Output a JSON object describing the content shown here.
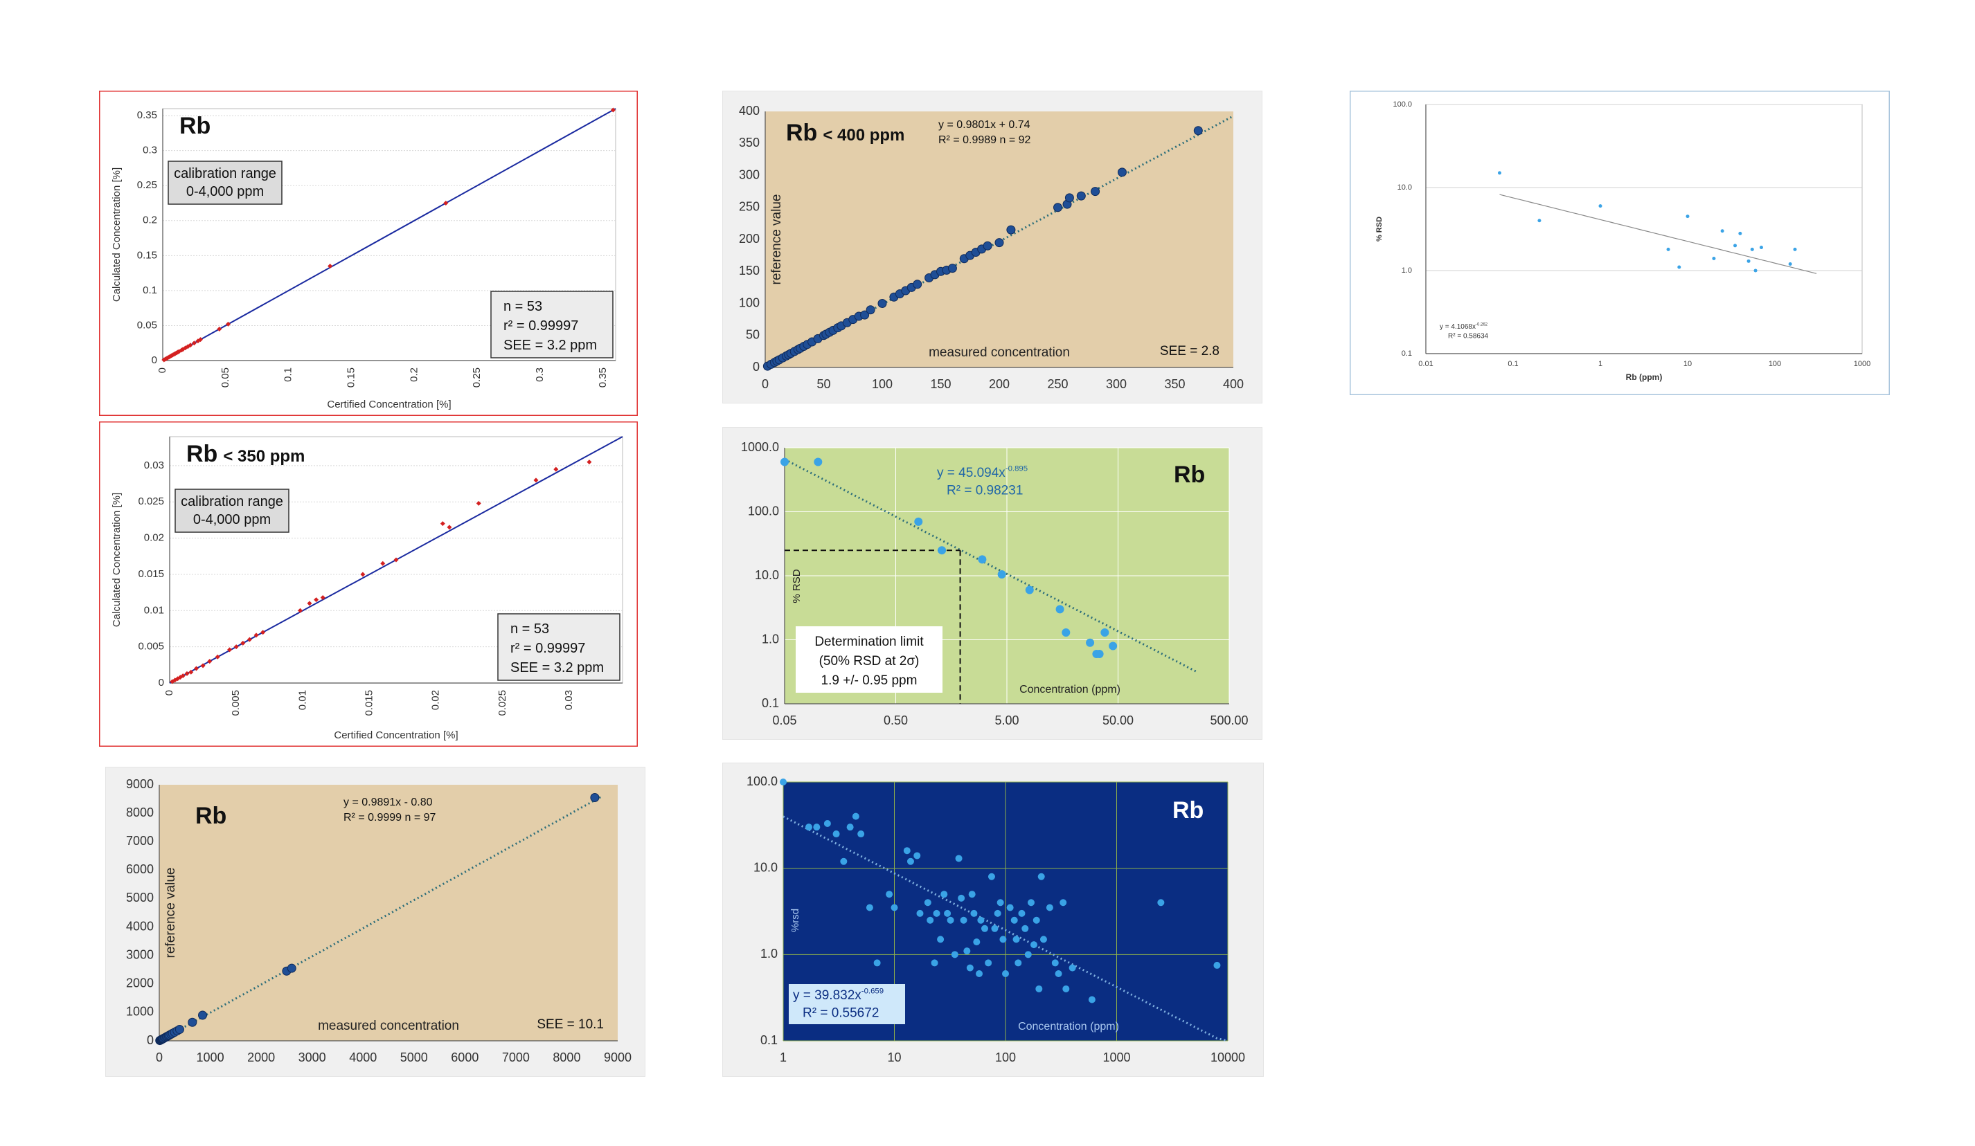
{
  "colors": {
    "red_frame": "#e03030",
    "tan_bg": "#e3ceaa",
    "green_bg": "#c8dc96",
    "navy_bg": "#0a2d82",
    "red_point": "#d42020",
    "dark_blue_point": "#1f4e96",
    "light_blue_point": "#3aa3e6",
    "fit_line_blue": "#1a2aa0",
    "dotted_fit": "#2d6e7a"
  },
  "chart_data": [
    {
      "id": "c1",
      "type": "scatter",
      "style": "red",
      "title": "Rb",
      "box_label": [
        "calibration range",
        "0-4,000 ppm"
      ],
      "stats": [
        "n = 53",
        "r² = 0.99997",
        "SEE = 3.2 ppm"
      ],
      "xlabel": "Certified Concentration [%]",
      "ylabel": "Calculated Concentration [%]",
      "xlim": [
        0,
        0.36
      ],
      "ylim": [
        0,
        0.36
      ],
      "x_ticks": [
        "0",
        "0.05",
        "0.1",
        "0.15",
        "0.2",
        "0.25",
        "0.3",
        "0.35"
      ],
      "x_tick_values": [
        0,
        0.05,
        0.1,
        0.15,
        0.2,
        0.25,
        0.3,
        0.35
      ],
      "y_ticks": [
        "0",
        "0.05",
        "0.1",
        "0.15",
        "0.2",
        "0.25",
        "0.3",
        "0.35"
      ],
      "y_tick_values": [
        0,
        0.05,
        0.1,
        0.15,
        0.2,
        0.25,
        0.3,
        0.35
      ],
      "fit": [
        [
          0,
          0
        ],
        [
          0.36,
          0.36
        ]
      ],
      "points": [
        [
          0.001,
          0.001
        ],
        [
          0.002,
          0.002
        ],
        [
          0.003,
          0.003
        ],
        [
          0.004,
          0.004
        ],
        [
          0.005,
          0.005
        ],
        [
          0.006,
          0.006
        ],
        [
          0.007,
          0.007
        ],
        [
          0.008,
          0.008
        ],
        [
          0.009,
          0.009
        ],
        [
          0.01,
          0.01
        ],
        [
          0.011,
          0.011
        ],
        [
          0.012,
          0.012
        ],
        [
          0.013,
          0.013
        ],
        [
          0.015,
          0.015
        ],
        [
          0.016,
          0.016
        ],
        [
          0.018,
          0.018
        ],
        [
          0.02,
          0.02
        ],
        [
          0.022,
          0.022
        ],
        [
          0.025,
          0.025
        ],
        [
          0.028,
          0.028
        ],
        [
          0.03,
          0.03
        ],
        [
          0.045,
          0.045
        ],
        [
          0.052,
          0.052
        ],
        [
          0.133,
          0.135
        ],
        [
          0.225,
          0.225
        ],
        [
          0.358,
          0.358
        ]
      ]
    },
    {
      "id": "c2",
      "type": "scatter",
      "style": "red",
      "title": "Rb",
      "title_suffix": "< 350 ppm",
      "box_label": [
        "calibration range",
        "0-4,000 ppm"
      ],
      "stats": [
        "n = 53",
        "r² = 0.99997",
        "SEE = 3.2 ppm"
      ],
      "xlabel": "Certified Concentration [%]",
      "ylabel": "Calculated Concentration [%]",
      "xlim": [
        0,
        0.034
      ],
      "ylim": [
        0,
        0.034
      ],
      "x_ticks": [
        "0",
        "0.005",
        "0.01",
        "0.015",
        "0.02",
        "0.025",
        "0.03"
      ],
      "x_tick_values": [
        0,
        0.005,
        0.01,
        0.015,
        0.02,
        0.025,
        0.03
      ],
      "y_ticks": [
        "0",
        "0.005",
        "0.01",
        "0.015",
        "0.02",
        "0.025",
        "0.03"
      ],
      "y_tick_values": [
        0,
        0.005,
        0.01,
        0.015,
        0.02,
        0.025,
        0.03
      ],
      "fit": [
        [
          0,
          0
        ],
        [
          0.034,
          0.034
        ]
      ],
      "points": [
        [
          0.0002,
          0.0002
        ],
        [
          0.0004,
          0.0004
        ],
        [
          0.0006,
          0.0006
        ],
        [
          0.0008,
          0.0008
        ],
        [
          0.001,
          0.001
        ],
        [
          0.0013,
          0.0013
        ],
        [
          0.0016,
          0.0015
        ],
        [
          0.002,
          0.002
        ],
        [
          0.0025,
          0.0024
        ],
        [
          0.003,
          0.003
        ],
        [
          0.0036,
          0.0036
        ],
        [
          0.0045,
          0.0046
        ],
        [
          0.005,
          0.005
        ],
        [
          0.0055,
          0.0055
        ],
        [
          0.006,
          0.006
        ],
        [
          0.0065,
          0.0066
        ],
        [
          0.007,
          0.007
        ],
        [
          0.0098,
          0.01
        ],
        [
          0.0105,
          0.011
        ],
        [
          0.011,
          0.0115
        ],
        [
          0.0115,
          0.0118
        ],
        [
          0.0145,
          0.015
        ],
        [
          0.016,
          0.0165
        ],
        [
          0.017,
          0.017
        ],
        [
          0.0205,
          0.022
        ],
        [
          0.021,
          0.0215
        ],
        [
          0.0232,
          0.0248
        ],
        [
          0.0275,
          0.028
        ],
        [
          0.029,
          0.0295
        ],
        [
          0.0315,
          0.0305
        ]
      ]
    },
    {
      "id": "c3",
      "type": "scatter",
      "style": "tan",
      "title": "Rb",
      "equation": [
        "y = 0.9891x - 0.80",
        "R² = 0.9999   n = 97"
      ],
      "see": "SEE = 10.1",
      "xlabel": "measured concentration",
      "ylabel": "reference value",
      "xlim": [
        0,
        9000
      ],
      "ylim": [
        0,
        9000
      ],
      "x_ticks": [
        "0",
        "1000",
        "2000",
        "3000",
        "4000",
        "5000",
        "6000",
        "7000",
        "8000",
        "9000"
      ],
      "x_tick_values": [
        0,
        1000,
        2000,
        3000,
        4000,
        5000,
        6000,
        7000,
        8000,
        9000
      ],
      "y_ticks": [
        "0",
        "1000",
        "2000",
        "3000",
        "4000",
        "5000",
        "6000",
        "7000",
        "8000",
        "9000"
      ],
      "y_tick_values": [
        0,
        1000,
        2000,
        3000,
        4000,
        5000,
        6000,
        7000,
        8000,
        9000
      ],
      "fit": [
        [
          0,
          -0.8
        ],
        [
          8700,
          8604
        ]
      ],
      "points": [
        [
          10,
          10
        ],
        [
          20,
          20
        ],
        [
          30,
          30
        ],
        [
          40,
          40
        ],
        [
          50,
          50
        ],
        [
          60,
          60
        ],
        [
          70,
          70
        ],
        [
          80,
          80
        ],
        [
          100,
          100
        ],
        [
          120,
          120
        ],
        [
          140,
          140
        ],
        [
          160,
          160
        ],
        [
          180,
          180
        ],
        [
          200,
          200
        ],
        [
          230,
          230
        ],
        [
          260,
          260
        ],
        [
          300,
          300
        ],
        [
          350,
          350
        ],
        [
          400,
          400
        ],
        [
          650,
          650
        ],
        [
          850,
          900
        ],
        [
          2500,
          2450
        ],
        [
          2600,
          2550
        ],
        [
          8550,
          8550
        ]
      ]
    },
    {
      "id": "c4",
      "type": "scatter",
      "style": "tan",
      "title": "Rb",
      "title_suffix": "< 400 ppm",
      "equation": [
        "y = 0.9801x + 0.74",
        "R² = 0.9989   n = 92"
      ],
      "see": "SEE = 2.8",
      "xlabel": "measured concentration",
      "ylabel": "reference value",
      "xlim": [
        0,
        400
      ],
      "ylim": [
        0,
        400
      ],
      "x_ticks": [
        "0",
        "50",
        "100",
        "150",
        "200",
        "250",
        "300",
        "350",
        "400"
      ],
      "x_tick_values": [
        0,
        50,
        100,
        150,
        200,
        250,
        300,
        350,
        400
      ],
      "y_ticks": [
        "0",
        "50",
        "100",
        "150",
        "200",
        "250",
        "300",
        "350",
        "400"
      ],
      "y_tick_values": [
        0,
        50,
        100,
        150,
        200,
        250,
        300,
        350,
        400
      ],
      "fit": [
        [
          0,
          0.74
        ],
        [
          400,
          392.8
        ]
      ],
      "points": [
        [
          2,
          2
        ],
        [
          5,
          5
        ],
        [
          8,
          8
        ],
        [
          10,
          10
        ],
        [
          12,
          12
        ],
        [
          15,
          15
        ],
        [
          18,
          18
        ],
        [
          20,
          20
        ],
        [
          22,
          22
        ],
        [
          25,
          25
        ],
        [
          28,
          28
        ],
        [
          30,
          30
        ],
        [
          33,
          33
        ],
        [
          36,
          36
        ],
        [
          40,
          40
        ],
        [
          45,
          45
        ],
        [
          50,
          50
        ],
        [
          52,
          52
        ],
        [
          55,
          55
        ],
        [
          58,
          58
        ],
        [
          62,
          62
        ],
        [
          65,
          65
        ],
        [
          70,
          70
        ],
        [
          75,
          75
        ],
        [
          80,
          80
        ],
        [
          85,
          82
        ],
        [
          90,
          90
        ],
        [
          100,
          100
        ],
        [
          110,
          110
        ],
        [
          115,
          115
        ],
        [
          120,
          120
        ],
        [
          125,
          125
        ],
        [
          130,
          130
        ],
        [
          140,
          140
        ],
        [
          145,
          145
        ],
        [
          150,
          150
        ],
        [
          155,
          152
        ],
        [
          160,
          155
        ],
        [
          170,
          170
        ],
        [
          175,
          175
        ],
        [
          180,
          180
        ],
        [
          185,
          185
        ],
        [
          190,
          190
        ],
        [
          200,
          195
        ],
        [
          210,
          215
        ],
        [
          250,
          250
        ],
        [
          258,
          255
        ],
        [
          260,
          265
        ],
        [
          270,
          268
        ],
        [
          282,
          275
        ],
        [
          305,
          305
        ],
        [
          370,
          370
        ]
      ]
    },
    {
      "id": "c5",
      "type": "scatter",
      "style": "green",
      "log": true,
      "title": "Rb",
      "equation": [
        "y = 45.094x",
        "-0.895",
        "R² = 0.98231"
      ],
      "box_label": [
        "Determination limit",
        "(50% RSD at 2σ)",
        "1.9 +/- 0.95 ppm"
      ],
      "xlabel": "Concentration (ppm)",
      "ylabel": "% RSD",
      "xlim": [
        0.05,
        500
      ],
      "ylim": [
        0.1,
        1000
      ],
      "x_ticks": [
        "0.05",
        "0.50",
        "5.00",
        "50.00",
        "500.00"
      ],
      "x_tick_values": [
        0.05,
        0.5,
        5,
        50,
        500
      ],
      "y_ticks": [
        "0.1",
        "1.0",
        "10.0",
        "100.0",
        "1000.0"
      ],
      "y_tick_values": [
        0.1,
        1,
        10,
        100,
        1000
      ],
      "fit_power": [
        45.094,
        -0.895
      ],
      "fit_range": [
        0.05,
        250
      ],
      "guide": [
        1.9,
        25
      ],
      "points": [
        [
          0.05,
          600
        ],
        [
          0.1,
          600
        ],
        [
          0.8,
          70
        ],
        [
          1.3,
          25
        ],
        [
          3,
          18
        ],
        [
          4.5,
          10.5
        ],
        [
          8,
          6
        ],
        [
          15,
          3
        ],
        [
          17,
          1.3
        ],
        [
          28,
          0.9
        ],
        [
          32,
          0.6
        ],
        [
          34,
          0.6
        ],
        [
          38,
          1.3
        ],
        [
          45,
          0.8
        ]
      ]
    },
    {
      "id": "c6",
      "type": "scatter",
      "style": "navy",
      "log": true,
      "title": "Rb",
      "equation": [
        "y = 39.832x",
        "-0.659",
        "R² = 0.55672"
      ],
      "xlabel": "Concentration (ppm)",
      "ylabel": "%rsd",
      "xlim": [
        1,
        10000
      ],
      "ylim": [
        0.1,
        100
      ],
      "x_ticks": [
        "1",
        "10",
        "100",
        "1000",
        "10000"
      ],
      "x_tick_values": [
        1,
        10,
        100,
        1000,
        10000
      ],
      "y_ticks": [
        "0.1",
        "1.0",
        "10.0",
        "100.0"
      ],
      "y_tick_values": [
        0.1,
        1,
        10,
        100
      ],
      "fit_power": [
        39.832,
        -0.659
      ],
      "fit_range": [
        1,
        10000
      ],
      "points": [
        [
          1,
          100
        ],
        [
          1.7,
          30
        ],
        [
          2,
          30
        ],
        [
          2.5,
          33
        ],
        [
          3,
          25
        ],
        [
          3.5,
          12
        ],
        [
          4,
          30
        ],
        [
          4.5,
          40
        ],
        [
          5,
          25
        ],
        [
          6,
          3.5
        ],
        [
          7,
          0.8
        ],
        [
          9,
          5
        ],
        [
          10,
          3.5
        ],
        [
          13,
          16
        ],
        [
          14,
          12
        ],
        [
          16,
          14
        ],
        [
          17,
          3
        ],
        [
          20,
          4
        ],
        [
          21,
          2.5
        ],
        [
          23,
          0.8
        ],
        [
          24,
          3
        ],
        [
          26,
          1.5
        ],
        [
          28,
          5
        ],
        [
          30,
          3
        ],
        [
          32,
          2.5
        ],
        [
          35,
          1
        ],
        [
          38,
          13
        ],
        [
          40,
          4.5
        ],
        [
          42,
          2.5
        ],
        [
          45,
          1.1
        ],
        [
          48,
          0.7
        ],
        [
          50,
          5
        ],
        [
          52,
          3
        ],
        [
          55,
          1.4
        ],
        [
          58,
          0.6
        ],
        [
          60,
          2.5
        ],
        [
          65,
          2
        ],
        [
          70,
          0.8
        ],
        [
          75,
          8
        ],
        [
          80,
          2
        ],
        [
          85,
          3
        ],
        [
          90,
          4
        ],
        [
          95,
          1.5
        ],
        [
          100,
          0.6
        ],
        [
          110,
          3.5
        ],
        [
          120,
          2.5
        ],
        [
          125,
          1.5
        ],
        [
          130,
          0.8
        ],
        [
          140,
          3
        ],
        [
          150,
          2
        ],
        [
          160,
          1
        ],
        [
          170,
          4
        ],
        [
          180,
          1.3
        ],
        [
          190,
          2.5
        ],
        [
          200,
          0.4
        ],
        [
          210,
          8
        ],
        [
          220,
          1.5
        ],
        [
          250,
          3.5
        ],
        [
          280,
          0.8
        ],
        [
          300,
          0.6
        ],
        [
          330,
          4
        ],
        [
          350,
          0.4
        ],
        [
          400,
          0.7
        ],
        [
          600,
          0.3
        ],
        [
          2500,
          4
        ],
        [
          8000,
          0.75
        ]
      ]
    },
    {
      "id": "c7",
      "type": "scatter",
      "style": "plain",
      "log": true,
      "equation": [
        "y = 4.1068x",
        "-0.262",
        "R² = 0.58634"
      ],
      "xlabel": "Rb (ppm)",
      "ylabel": "% RSD",
      "xlim": [
        0.01,
        1000
      ],
      "ylim": [
        0.1,
        100
      ],
      "x_ticks": [
        "0.01",
        "0.1",
        "1",
        "10",
        "100",
        "1000"
      ],
      "x_tick_values": [
        0.01,
        0.1,
        1,
        10,
        100,
        1000
      ],
      "y_ticks": [
        "0.1",
        "1.0",
        "10.0",
        "100.0"
      ],
      "y_tick_values": [
        0.1,
        1,
        10,
        100
      ],
      "fit_power": [
        4.1068,
        -0.262
      ],
      "fit_range": [
        0.07,
        300
      ],
      "points": [
        [
          0.07,
          15
        ],
        [
          0.2,
          4
        ],
        [
          1,
          6
        ],
        [
          6,
          1.8
        ],
        [
          8,
          1.1
        ],
        [
          10,
          4.5
        ],
        [
          20,
          1.4
        ],
        [
          25,
          3
        ],
        [
          35,
          2
        ],
        [
          40,
          2.8
        ],
        [
          50,
          1.3
        ],
        [
          55,
          1.8
        ],
        [
          60,
          1
        ],
        [
          70,
          1.9
        ],
        [
          150,
          1.2
        ],
        [
          170,
          1.8
        ]
      ]
    }
  ]
}
